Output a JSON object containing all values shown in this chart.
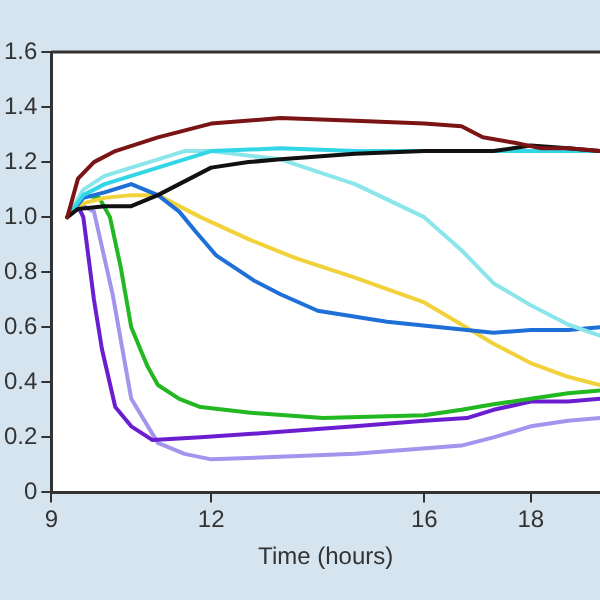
{
  "chart_data": {
    "type": "line",
    "xlabel": "Time (hours)",
    "xlim": [
      9,
      19.3
    ],
    "xticks": [
      9,
      12,
      16,
      18
    ],
    "ylim": [
      0,
      1.6
    ],
    "yticks": [
      {
        "value": 0,
        "label": "0"
      },
      0.2,
      0.4,
      0.6,
      0.8,
      {
        "value": 1,
        "label": "1.0"
      },
      1.2,
      1.4,
      1.6
    ],
    "grid": false,
    "legend": false,
    "marker": "none",
    "line_style": "solid",
    "series": [
      {
        "color": "#7b1414",
        "x": [
          9.3,
          9.5,
          9.8,
          10.2,
          11,
          12,
          13.3,
          14.7,
          16,
          16.7,
          17.1,
          17.7,
          18.2,
          18.7,
          19.3
        ],
        "values": [
          1.0,
          1.14,
          1.2,
          1.24,
          1.29,
          1.34,
          1.36,
          1.35,
          1.34,
          1.33,
          1.29,
          1.27,
          1.25,
          1.25,
          1.24
        ]
      },
      {
        "color": "#111111",
        "x": [
          9.3,
          9.5,
          10,
          10.5,
          11,
          11.5,
          12,
          12.7,
          13.3,
          14.7,
          16,
          17.3,
          18,
          18.7,
          19.3
        ],
        "values": [
          1.0,
          1.03,
          1.04,
          1.04,
          1.08,
          1.13,
          1.18,
          1.2,
          1.21,
          1.23,
          1.24,
          1.24,
          1.26,
          1.25,
          1.24
        ]
      },
      {
        "color": "#33d6e6",
        "x": [
          9.3,
          9.6,
          10,
          10.5,
          11,
          12,
          13.3,
          14.7,
          16.7,
          18,
          19.3
        ],
        "values": [
          1.0,
          1.08,
          1.12,
          1.15,
          1.18,
          1.24,
          1.25,
          1.24,
          1.24,
          1.24,
          1.24
        ]
      },
      {
        "color": "#8ae6ea",
        "x": [
          9.3,
          9.6,
          10,
          11,
          11.5,
          12,
          13.3,
          14.7,
          16,
          16.7,
          17.3,
          18,
          18.7,
          19.3
        ],
        "values": [
          1.0,
          1.1,
          1.15,
          1.21,
          1.24,
          1.24,
          1.21,
          1.12,
          1.0,
          0.88,
          0.76,
          0.68,
          0.61,
          0.57
        ]
      },
      {
        "color": "#1f6fd8",
        "x": [
          9.3,
          9.6,
          10,
          10.5,
          11,
          11.4,
          11.7,
          12.1,
          12.8,
          13.3,
          14,
          15.3,
          16.3,
          17.3,
          18,
          18.7,
          19.3
        ],
        "values": [
          1.0,
          1.07,
          1.09,
          1.12,
          1.08,
          1.02,
          0.95,
          0.86,
          0.77,
          0.72,
          0.66,
          0.62,
          0.6,
          0.58,
          0.59,
          0.59,
          0.6
        ]
      },
      {
        "color": "#f2d23a",
        "x": [
          9.3,
          9.6,
          10,
          10.5,
          11,
          11.8,
          12.7,
          13.6,
          14.7,
          16,
          16.7,
          17.3,
          18,
          18.7,
          19.3
        ],
        "values": [
          1.0,
          1.05,
          1.07,
          1.08,
          1.08,
          1.0,
          0.92,
          0.85,
          0.78,
          0.69,
          0.61,
          0.54,
          0.47,
          0.42,
          0.39
        ]
      },
      {
        "color": "#22b822",
        "x": [
          9.3,
          9.6,
          9.9,
          10.1,
          10.3,
          10.5,
          10.8,
          11,
          11.4,
          11.8,
          12.7,
          14.1,
          16,
          16.7,
          17.3,
          18,
          18.7,
          19.3
        ],
        "values": [
          1.0,
          1.08,
          1.07,
          1.0,
          0.82,
          0.6,
          0.46,
          0.39,
          0.34,
          0.31,
          0.29,
          0.27,
          0.28,
          0.3,
          0.32,
          0.34,
          0.36,
          0.37
        ]
      },
      {
        "color": "#6a1ed0",
        "x": [
          9.3,
          9.5,
          9.6,
          9.8,
          9.95,
          10.2,
          10.5,
          10.9,
          11.8,
          13.3,
          14.7,
          16,
          16.8,
          17.3,
          18,
          18.7,
          19.3
        ],
        "values": [
          1.0,
          1.04,
          1.0,
          0.7,
          0.52,
          0.31,
          0.24,
          0.19,
          0.2,
          0.22,
          0.24,
          0.26,
          0.27,
          0.3,
          0.33,
          0.33,
          0.34
        ]
      },
      {
        "color": "#a394ee",
        "x": [
          9.3,
          9.5,
          9.8,
          10.15,
          10.5,
          11,
          11.5,
          12,
          14.7,
          16.7,
          17.3,
          18,
          18.7,
          19.3
        ],
        "values": [
          1.0,
          1.05,
          1.02,
          0.72,
          0.34,
          0.18,
          0.14,
          0.12,
          0.14,
          0.17,
          0.2,
          0.24,
          0.26,
          0.27
        ]
      }
    ]
  }
}
